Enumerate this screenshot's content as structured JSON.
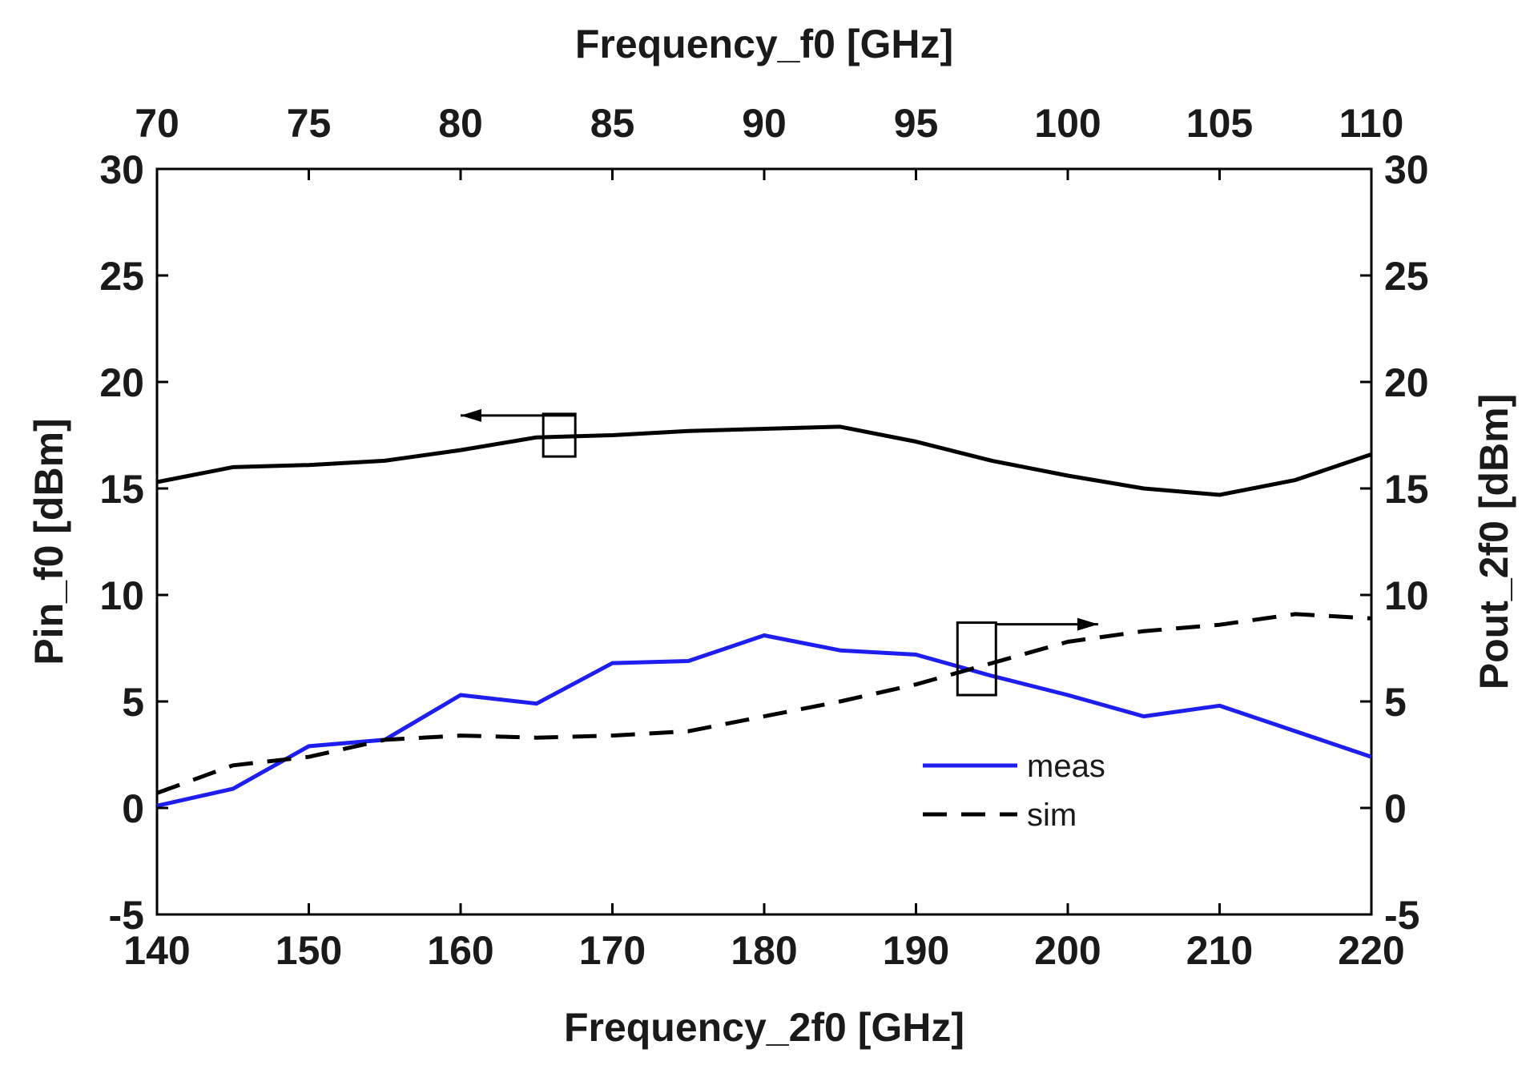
{
  "chart_data": {
    "type": "line",
    "title": "",
    "x_bottom": {
      "label": "Frequency_2f0 [GHz]",
      "lim": [
        140,
        220
      ],
      "ticks": [
        140,
        150,
        160,
        170,
        180,
        190,
        200,
        210,
        220
      ]
    },
    "x_top": {
      "label": "Frequency_f0 [GHz]",
      "lim": [
        70,
        110
      ],
      "ticks": [
        70,
        75,
        80,
        85,
        90,
        95,
        100,
        105,
        110
      ]
    },
    "y_left": {
      "label": "Pin_f0 [dBm]",
      "lim": [
        -5,
        30
      ],
      "ticks": [
        -5,
        0,
        5,
        10,
        15,
        20,
        25,
        30
      ]
    },
    "y_right": {
      "label": "Pout_2f0 [dBm]",
      "lim": [
        -5,
        30
      ],
      "ticks": [
        -5,
        0,
        5,
        10,
        15,
        20,
        25,
        30
      ]
    },
    "grid": false,
    "legend": {
      "position": "inside, lower center-right"
    },
    "series": [
      {
        "style": "solid",
        "color": "#000000",
        "axes": "top-left",
        "x": [
          70,
          72.5,
          75,
          77.5,
          80,
          82.5,
          85,
          87.5,
          90,
          92.5,
          95,
          97.5,
          100,
          102.5,
          105,
          107.5,
          110
        ],
        "y": [
          15.3,
          16.0,
          16.1,
          16.3,
          16.8,
          17.4,
          17.5,
          17.7,
          17.8,
          17.9,
          17.2,
          16.3,
          15.6,
          15.0,
          14.7,
          15.4,
          16.6
        ]
      },
      {
        "name": "meas",
        "style": "solid",
        "color": "#1e1ef0",
        "axes": "bottom-right",
        "x": [
          140,
          145,
          150,
          155,
          160,
          165,
          170,
          175,
          180,
          185,
          190,
          195,
          200,
          205,
          210,
          215,
          220
        ],
        "y": [
          0.1,
          0.9,
          2.9,
          3.2,
          5.3,
          4.9,
          6.8,
          6.9,
          8.1,
          7.4,
          7.2,
          6.2,
          5.3,
          4.3,
          4.8,
          3.6,
          2.4
        ]
      },
      {
        "name": "sim",
        "style": "dashed",
        "color": "#000000",
        "axes": "bottom-right",
        "x": [
          140,
          145,
          150,
          155,
          160,
          165,
          170,
          175,
          180,
          185,
          190,
          195,
          200,
          205,
          210,
          215,
          220
        ],
        "y": [
          0.7,
          2.0,
          2.4,
          3.2,
          3.4,
          3.3,
          3.4,
          3.6,
          4.3,
          5.0,
          5.8,
          6.8,
          7.8,
          8.3,
          8.6,
          9.1,
          8.9
        ]
      }
    ],
    "annotations": [
      {
        "type": "bracket-arrow",
        "direction": "left",
        "target_axis": "y_left",
        "at_bottom_x": 166.5,
        "box_y_range": [
          16.5,
          18.5
        ],
        "arrow_to_bottom_x": 160
      },
      {
        "type": "bracket-arrow",
        "direction": "right",
        "target_axis": "y_right",
        "at_bottom_x": 194,
        "box_y_range": [
          5.3,
          8.7
        ],
        "arrow_to_bottom_x": 202
      }
    ]
  }
}
